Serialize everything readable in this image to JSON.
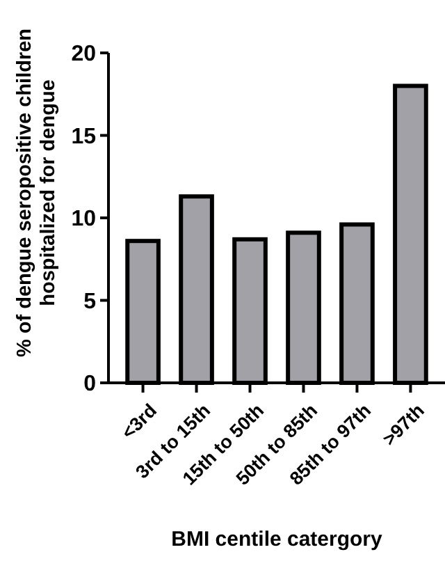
{
  "chart_data": {
    "type": "bar",
    "xlabel": "BMI centile catergory",
    "ylabel": "% of dengue seropositive children\nhospitalized for dengue",
    "categories": [
      "<3rd",
      "3rd to 15th",
      "15th to 50th",
      "50th to 85th",
      "85th to 97th",
      ">97th"
    ],
    "values": [
      8.6,
      11.3,
      8.7,
      9.1,
      9.6,
      18.0
    ],
    "color": "#a2a1a7",
    "ylim": [
      0,
      20
    ],
    "yticks": [
      0,
      5,
      10,
      15,
      20
    ],
    "grid": false
  }
}
